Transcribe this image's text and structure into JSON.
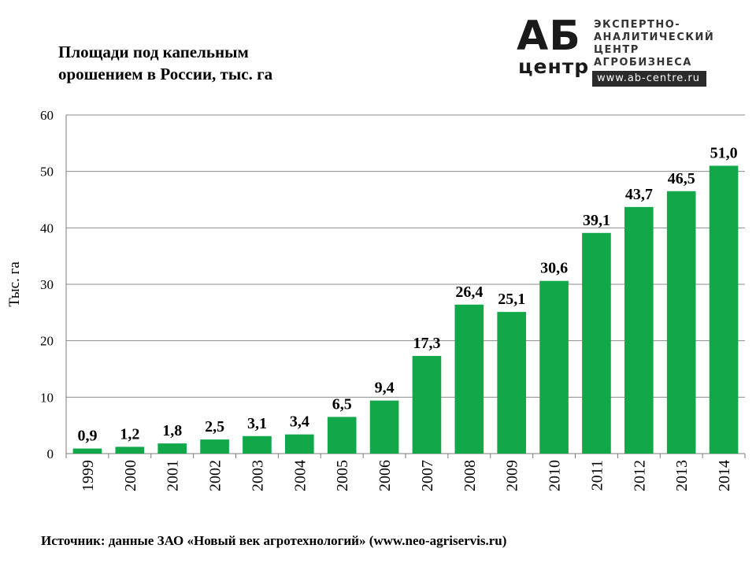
{
  "title_lines": [
    "Площади под капельным",
    "орошением в России, тыс. га"
  ],
  "logo": {
    "mark": "АБ",
    "mark_sub": "центр",
    "lines": [
      "ЭКСПЕРТНО-",
      "АНАЛИТИЧЕСКИЙ",
      "ЦЕНТР",
      "АГРОБИЗНЕСА"
    ],
    "url": "www.ab-centre.ru"
  },
  "source": "Источник: данные ЗАО «Новый век агротехнологий» (www.neo-agriservis.ru)",
  "colors": {
    "bar": "#12a84a",
    "grid": "#8c8c8c",
    "axis": "#7a7a7a",
    "text": "#000000"
  },
  "chart_data": {
    "type": "bar",
    "title": "Площади под капельным орошением в России, тыс. га",
    "xlabel": "",
    "ylabel": "Тыс. га",
    "categories": [
      "1999",
      "2000",
      "2001",
      "2002",
      "2003",
      "2004",
      "2005",
      "2006",
      "2007",
      "2008",
      "2009",
      "2010",
      "2011",
      "2012",
      "2013",
      "2014"
    ],
    "values": [
      0.9,
      1.2,
      1.8,
      2.5,
      3.1,
      3.4,
      6.5,
      9.4,
      17.3,
      26.4,
      25.1,
      30.6,
      39.1,
      43.7,
      46.5,
      51.0
    ],
    "value_labels": [
      "0,9",
      "1,2",
      "1,8",
      "2,5",
      "3,1",
      "3,4",
      "6,5",
      "9,4",
      "17,3",
      "26,4",
      "25,1",
      "30,6",
      "39,1",
      "43,7",
      "46,5",
      "51,0"
    ],
    "yticks": [
      0,
      10,
      20,
      30,
      40,
      50,
      60
    ],
    "ylim": [
      0,
      60
    ],
    "grid": true
  }
}
